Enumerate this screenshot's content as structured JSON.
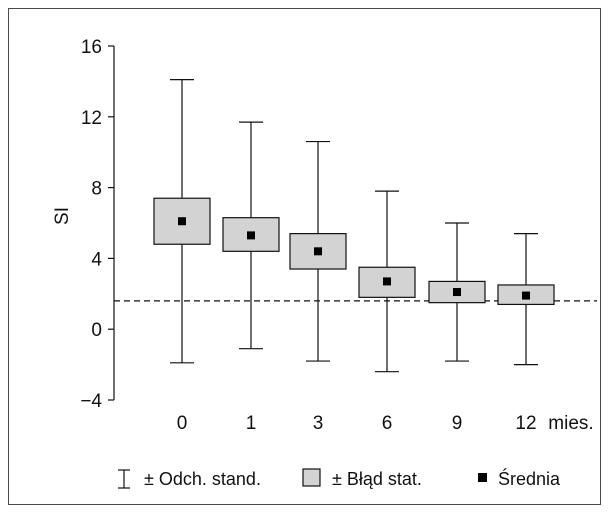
{
  "chart_data": {
    "type": "box",
    "ylabel": "SI",
    "ylim": [
      -4,
      16
    ],
    "yticks": [
      "−4",
      "0",
      "4",
      "8",
      "12",
      "16"
    ],
    "ytick_values": [
      -4,
      0,
      4,
      8,
      12,
      16
    ],
    "categories": [
      "0",
      "1",
      "3",
      "6",
      "9",
      "12"
    ],
    "x_unit": "mies.",
    "reference_line": {
      "value": 1.6,
      "style": "dashed"
    },
    "series": [
      {
        "mean": [
          6.1,
          5.3,
          4.4,
          2.7,
          2.1,
          1.9
        ],
        "se_low": [
          4.8,
          4.4,
          3.4,
          1.8,
          1.5,
          1.4
        ],
        "se_high": [
          7.4,
          6.3,
          5.4,
          3.5,
          2.7,
          2.5
        ],
        "sd_low": [
          -1.9,
          -1.1,
          -1.8,
          -2.4,
          -1.8,
          -2.0
        ],
        "sd_high": [
          14.1,
          11.7,
          10.6,
          7.8,
          6.0,
          5.4
        ]
      }
    ],
    "legend": [
      {
        "symbol": "whisker",
        "label": "± Odch. stand."
      },
      {
        "symbol": "box",
        "label": "± Błąd stat."
      },
      {
        "symbol": "square",
        "label": "Średnia"
      }
    ],
    "colors": {
      "box_fill": "#d3d3d3",
      "stroke": "#111111",
      "mean": "#000000"
    }
  }
}
